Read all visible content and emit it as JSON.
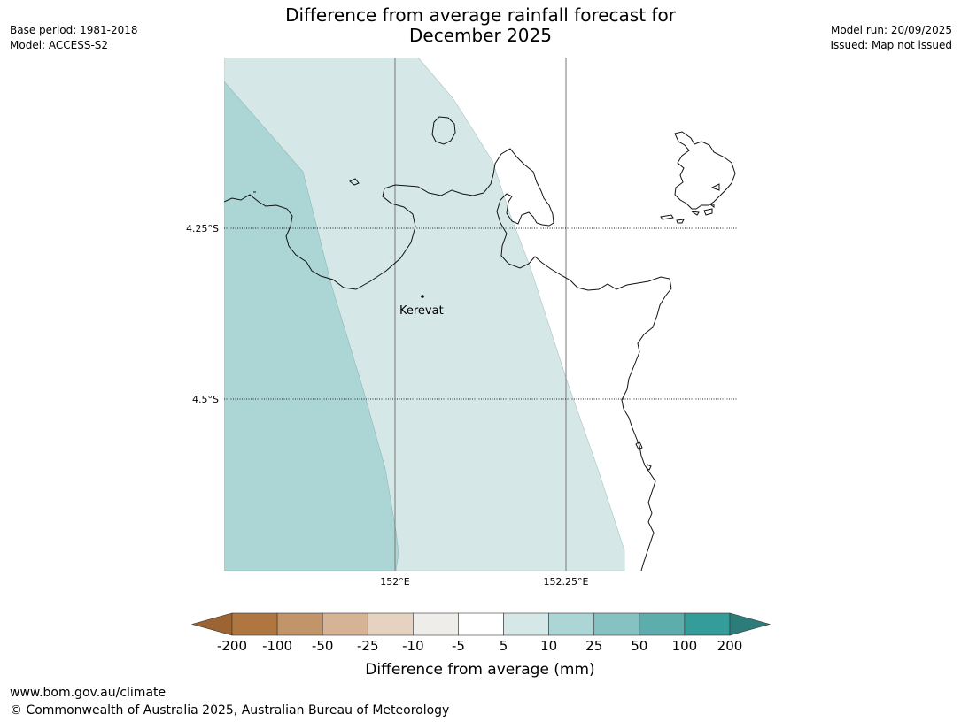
{
  "title_line1": "Difference from average rainfall forecast for",
  "title_line2": "December 2025",
  "meta_left": {
    "base_period": "Base period: 1981-2018",
    "model": "Model: ACCESS-S2"
  },
  "meta_right": {
    "model_run": "Model run: 20/09/2025",
    "issued": "Issued: Map not issued"
  },
  "map": {
    "lat_labels": [
      "4.25°S",
      "4.5°S"
    ],
    "lon_labels": [
      "152°E",
      "152.25°E"
    ],
    "place": {
      "name": "Kerevat"
    }
  },
  "legend": {
    "title": "Difference from average (mm)",
    "ticks": [
      "-200",
      "-100",
      "-50",
      "-25",
      "-10",
      "-5",
      "5",
      "10",
      "25",
      "50",
      "100",
      "200"
    ],
    "colors": [
      "#9c6433",
      "#b07640",
      "#c29469",
      "#d5b394",
      "#e6d2c0",
      "#efedea",
      "#ffffff",
      "#d5e8e7",
      "#acd5d5",
      "#85c2c1",
      "#5dadad",
      "#349c99",
      "#2c7c7a"
    ]
  },
  "footer": {
    "url": "www.bom.gov.au/climate",
    "copyright": "© Commonwealth of Australia 2025, Australian Bureau of Meteorology"
  }
}
